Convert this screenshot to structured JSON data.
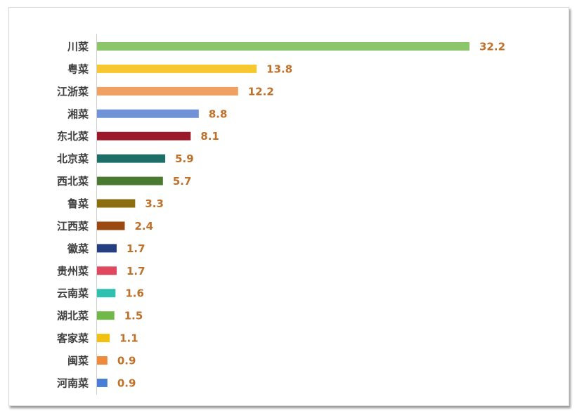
{
  "chart_data": {
    "type": "bar",
    "orientation": "horizontal",
    "title": "",
    "xlabel": "",
    "ylabel": "",
    "xlim": [
      0,
      32.2
    ],
    "grid": false,
    "categories": [
      "川菜",
      "粤菜",
      "江浙菜",
      "湘菜",
      "东北菜",
      "北京菜",
      "西北菜",
      "鲁菜",
      "江西菜",
      "徽菜",
      "贵州菜",
      "云南菜",
      "湖北菜",
      "客家菜",
      "闽菜",
      "河南菜"
    ],
    "values": [
      32.2,
      13.8,
      12.2,
      8.8,
      8.1,
      5.9,
      5.7,
      3.3,
      2.4,
      1.7,
      1.7,
      1.6,
      1.5,
      1.1,
      0.9,
      0.9
    ],
    "labels": [
      "32.2",
      "13.8",
      "12.2",
      "8.8",
      "8.1",
      "5.9",
      "5.7",
      "3.3",
      "2.4",
      "1.7",
      "1.7",
      "1.6",
      "1.5",
      "1.1",
      "0.9",
      "0.9"
    ],
    "colors": [
      "#8cc66a",
      "#f7c82e",
      "#f0a060",
      "#6f93d6",
      "#9b1a2a",
      "#1e6e68",
      "#4a7a30",
      "#8a6e10",
      "#9a4a10",
      "#233f80",
      "#e04860",
      "#30c0b0",
      "#70b848",
      "#f2c010",
      "#ef8a3a",
      "#4a7ed6"
    ]
  }
}
